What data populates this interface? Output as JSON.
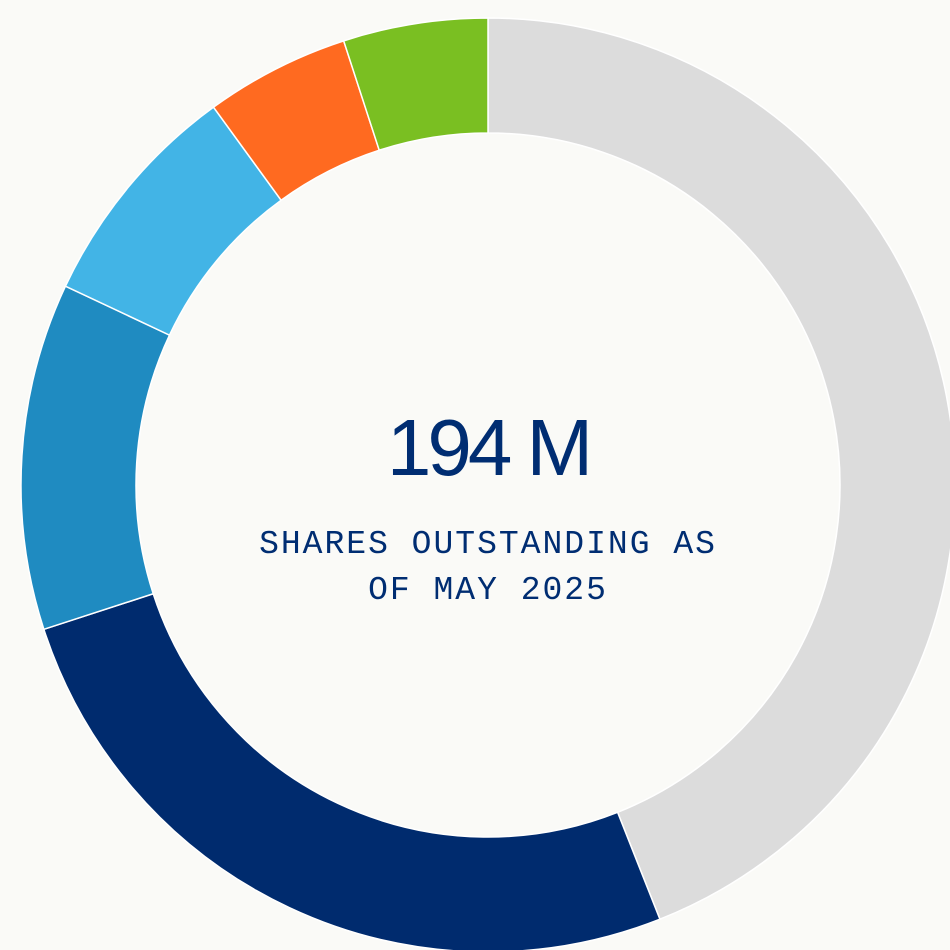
{
  "chart_data": {
    "type": "donut",
    "center_value": "194 M",
    "center_label": "SHARES OUTSTANDING AS OF MAY 2025",
    "values": [
      44,
      26,
      12,
      8,
      5,
      5
    ],
    "colors": [
      "#dcdcdc",
      "#002b6e",
      "#1f8bc1",
      "#42b4e6",
      "#ff6a20",
      "#7abf22"
    ]
  }
}
